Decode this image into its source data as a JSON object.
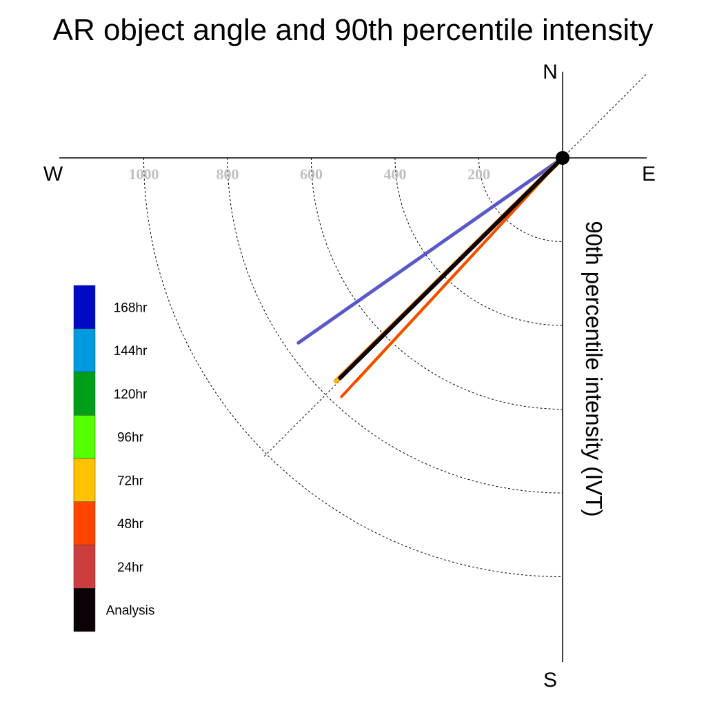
{
  "title": "AR object angle and 90th percentile intensity",
  "compass": {
    "north": "N",
    "south": "S",
    "east": "E",
    "west": "W"
  },
  "radial_axis_label": "90th percentile intensity (IVT)",
  "chart_data": {
    "type": "polar-vector",
    "title": "AR object angle and 90th percentile intensity",
    "radial_label": "90th percentile intensity (IVT)",
    "radial_ticks": [
      200,
      400,
      600,
      800,
      1000
    ],
    "radial_range": [
      0,
      1200
    ],
    "direction_labels": [
      "N",
      "E",
      "S",
      "W"
    ],
    "reference_angle_deg": 225,
    "legend_position": "left",
    "series": [
      {
        "name": "Analysis",
        "color": "#0b0208",
        "angle_deg": 225.3,
        "intensity": 747
      },
      {
        "name": "24hr",
        "color": "#cc3d3d",
        "angle_deg": 224.2,
        "intensity": 754
      },
      {
        "name": "48hr",
        "color": "#ff4500",
        "angle_deg": 222.8,
        "intensity": 777
      },
      {
        "name": "72hr",
        "color": "#ffc200",
        "angle_deg": 225.4,
        "intensity": 759
      },
      {
        "name": "96hr",
        "color": "#54ff00",
        "angle_deg": 222.7,
        "intensity": 726
      },
      {
        "name": "120hr",
        "color": "#009f1a",
        "angle_deg": 225.0,
        "intensity": 740
      },
      {
        "name": "144hr",
        "color": "#009ae0",
        "angle_deg": 225.0,
        "intensity": 740
      },
      {
        "name": "168hr",
        "color": "#4747c4",
        "angle_deg": 235.0,
        "intensity": 770
      }
    ],
    "drawn_series": [
      "168hr",
      "96hr",
      "48hr",
      "72hr",
      "Analysis"
    ],
    "legend": [
      {
        "label": "168hr",
        "color": "#0009c4"
      },
      {
        "label": "144hr",
        "color": "#009ae0"
      },
      {
        "label": "120hr",
        "color": "#009f1a"
      },
      {
        "label": "96hr",
        "color": "#54ff00"
      },
      {
        "label": "72hr",
        "color": "#ffc200"
      },
      {
        "label": "48hr",
        "color": "#ff4500"
      },
      {
        "label": "24hr",
        "color": "#cc3d3d"
      },
      {
        "label": "Analysis",
        "color": "#0b0208"
      }
    ]
  }
}
